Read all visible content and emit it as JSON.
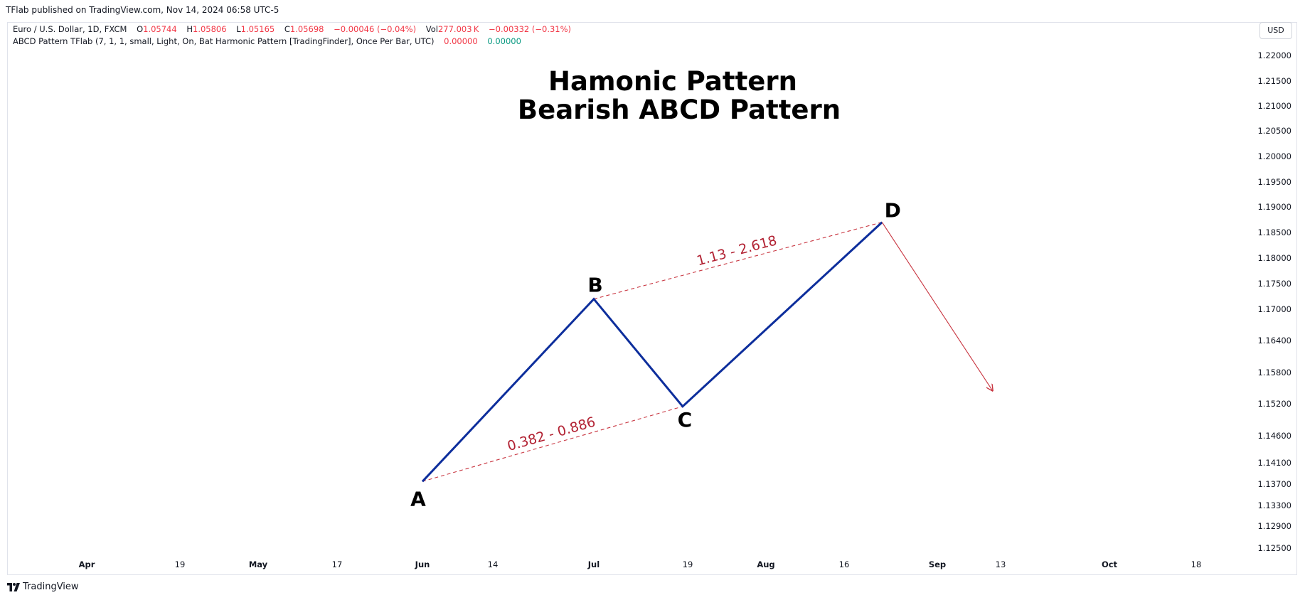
{
  "header": {
    "published": "TFlab published on TradingView.com, Nov 14, 2024 06:58 UTC-5"
  },
  "legend": {
    "symbol": "Euro / U.S. Dollar, 1D, FXCM",
    "open_label": "O",
    "open_value": "1.05744",
    "high_label": "H",
    "high_value": "1.05806",
    "low_label": "L",
    "low_value": "1.05165",
    "close_label": "C",
    "close_value": "1.05698",
    "change": "−0.00046 (−0.04%)",
    "vol_label": "Vol",
    "vol_value": "277.003 K",
    "vol_change": "−0.00332 (−0.31%)",
    "indicator": "ABCD Pattern TFlab (7, 1, 1, small, Light, On, Bat Harmonic Pattern [TradingFinder], Once Per Bar, UTC)",
    "indicator_value_1": "0.00000",
    "indicator_value_2": "0.00000"
  },
  "currency_button": "USD",
  "footer": {
    "brand": "TradingView",
    "logo_icon": "tradingview-logo-icon"
  },
  "colors": {
    "pattern_line": "#0d2e9c",
    "ratio_line": "#c8343f",
    "down_change": "#f23645",
    "up_change": "#089981"
  },
  "chart_data": {
    "type": "line",
    "title_lines": [
      "Hamonic Pattern",
      "Bearish ABCD Pattern"
    ],
    "y_ticks": [
      "1.22000",
      "1.21500",
      "1.21000",
      "1.20500",
      "1.20000",
      "1.19500",
      "1.19000",
      "1.18500",
      "1.18000",
      "1.17500",
      "1.17000",
      "1.16400",
      "1.15800",
      "1.15200",
      "1.14600",
      "1.14100",
      "1.13700",
      "1.13300",
      "1.12900",
      "1.12500"
    ],
    "x_ticks": [
      {
        "label": "Apr",
        "strong": true
      },
      {
        "label": "19",
        "strong": false
      },
      {
        "label": "May",
        "strong": true
      },
      {
        "label": "17",
        "strong": false
      },
      {
        "label": "Jun",
        "strong": true
      },
      {
        "label": "14",
        "strong": false
      },
      {
        "label": "Jul",
        "strong": true
      },
      {
        "label": "19",
        "strong": false
      },
      {
        "label": "Aug",
        "strong": true
      },
      {
        "label": "16",
        "strong": false
      },
      {
        "label": "Sep",
        "strong": true
      },
      {
        "label": "13",
        "strong": false
      },
      {
        "label": "Oct",
        "strong": true
      },
      {
        "label": "18",
        "strong": false
      }
    ],
    "pattern_points": [
      {
        "label": "A",
        "date": "2024-06-01",
        "value": 1.1375
      },
      {
        "label": "B",
        "date": "2024-07-01",
        "value": 1.172
      },
      {
        "label": "C",
        "date": "2024-07-17",
        "value": 1.1515
      },
      {
        "label": "D",
        "date": "2024-08-22",
        "value": 1.187
      }
    ],
    "ratio_lines": [
      {
        "from": "A",
        "to": "C",
        "label": "0.382 - 0.886"
      },
      {
        "from": "B",
        "to": "D",
        "label": "1.13 - 2.618"
      }
    ],
    "projection_arrow": {
      "from": {
        "date": "2024-08-22",
        "value": 1.187
      },
      "to": {
        "date": "2024-09-11",
        "value": 1.1545
      }
    }
  }
}
